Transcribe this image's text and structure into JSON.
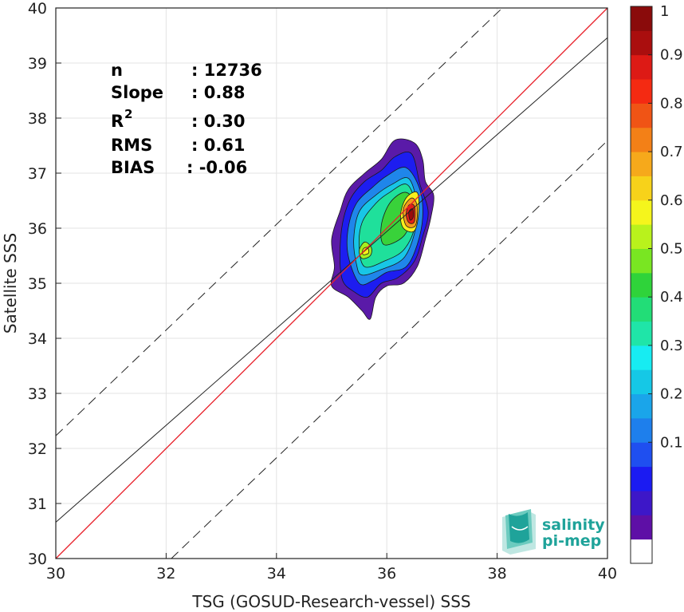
{
  "chart_data": {
    "type": "heatmap",
    "subtype": "density-contour-scatter",
    "xlabel": "TSG (GOSUD-Research-vessel) SSS",
    "ylabel": "Satellite SSS",
    "xlim": [
      30,
      40
    ],
    "ylim": [
      30,
      40
    ],
    "xticks": [
      "30",
      "32",
      "34",
      "36",
      "38",
      "40"
    ],
    "yticks": [
      "30",
      "31",
      "32",
      "33",
      "34",
      "35",
      "36",
      "37",
      "38",
      "39",
      "40"
    ],
    "grid": true,
    "stats": [
      {
        "label": "n",
        "value": ": 12736"
      },
      {
        "label": "Slope",
        "value": ": 0.88"
      },
      {
        "label": "R",
        "sup": "2",
        "value": ": 0.30"
      },
      {
        "label": "RMS",
        "value": ": 0.61"
      },
      {
        "label": "BIAS",
        "value": ": -0.06"
      }
    ],
    "lines": {
      "identity": {
        "slope": 1,
        "intercept": 0,
        "color": "#e8202a"
      },
      "regression": {
        "slope": 0.88,
        "intercept": 4.26,
        "color": "#222222"
      },
      "bounds": [
        {
          "slope": 0.96,
          "intercept": 3.43,
          "style": "dashed"
        },
        {
          "slope": 0.96,
          "intercept": -0.81,
          "style": "dashed"
        }
      ]
    },
    "density_contours": [
      {
        "level": 0.05,
        "color": "#5a1aa8",
        "points": [
          [
            35.3,
            34.75
          ],
          [
            35.55,
            34.5
          ],
          [
            35.7,
            34.35
          ],
          [
            35.8,
            34.75
          ],
          [
            36.0,
            34.95
          ],
          [
            36.3,
            35.0
          ],
          [
            36.55,
            35.3
          ],
          [
            36.7,
            35.8
          ],
          [
            36.8,
            36.2
          ],
          [
            36.85,
            36.6
          ],
          [
            36.7,
            36.85
          ],
          [
            36.65,
            37.25
          ],
          [
            36.5,
            37.55
          ],
          [
            36.15,
            37.6
          ],
          [
            35.9,
            37.25
          ],
          [
            35.6,
            37.0
          ],
          [
            35.3,
            36.7
          ],
          [
            35.15,
            36.3
          ],
          [
            35.0,
            35.8
          ],
          [
            35.05,
            35.3
          ],
          [
            35.0,
            34.95
          ]
        ]
      },
      {
        "level": 0.15,
        "color": "#1d1df0",
        "points": [
          [
            35.4,
            34.85
          ],
          [
            35.65,
            34.75
          ],
          [
            35.9,
            35.0
          ],
          [
            36.2,
            35.1
          ],
          [
            36.5,
            35.4
          ],
          [
            36.65,
            35.85
          ],
          [
            36.75,
            36.3
          ],
          [
            36.6,
            36.8
          ],
          [
            36.45,
            37.35
          ],
          [
            36.15,
            37.3
          ],
          [
            35.9,
            37.05
          ],
          [
            35.6,
            36.85
          ],
          [
            35.35,
            36.55
          ],
          [
            35.2,
            36.1
          ],
          [
            35.15,
            35.5
          ],
          [
            35.2,
            35.05
          ]
        ]
      },
      {
        "level": 0.25,
        "color": "#1f86ea",
        "points": [
          [
            35.5,
            35.0
          ],
          [
            35.75,
            35.05
          ],
          [
            36.0,
            35.2
          ],
          [
            36.35,
            35.3
          ],
          [
            36.55,
            35.7
          ],
          [
            36.65,
            36.2
          ],
          [
            36.6,
            36.7
          ],
          [
            36.35,
            37.1
          ],
          [
            36.0,
            36.95
          ],
          [
            35.75,
            36.75
          ],
          [
            35.45,
            36.45
          ],
          [
            35.3,
            36.0
          ],
          [
            35.3,
            35.5
          ]
        ]
      },
      {
        "level": 0.35,
        "color": "#18c6e6",
        "points": [
          [
            35.55,
            35.15
          ],
          [
            35.9,
            35.25
          ],
          [
            36.3,
            35.45
          ],
          [
            36.5,
            35.9
          ],
          [
            36.55,
            36.4
          ],
          [
            36.4,
            36.9
          ],
          [
            36.1,
            36.8
          ],
          [
            35.8,
            36.6
          ],
          [
            35.5,
            36.3
          ],
          [
            35.4,
            35.8
          ],
          [
            35.45,
            35.35
          ]
        ]
      },
      {
        "level": 0.45,
        "color": "#1fe09b",
        "points": [
          [
            35.6,
            35.3
          ],
          [
            35.95,
            35.4
          ],
          [
            36.3,
            35.6
          ],
          [
            36.5,
            36.0
          ],
          [
            36.5,
            36.5
          ],
          [
            36.35,
            36.8
          ],
          [
            36.05,
            36.65
          ],
          [
            35.8,
            36.45
          ],
          [
            35.55,
            36.1
          ],
          [
            35.5,
            35.65
          ]
        ]
      },
      {
        "level": 0.55,
        "color": "#39d23a",
        "points": [
          [
            35.95,
            35.7
          ],
          [
            36.3,
            35.85
          ],
          [
            36.45,
            36.2
          ],
          [
            36.45,
            36.55
          ],
          [
            36.3,
            36.65
          ],
          [
            36.05,
            36.45
          ],
          [
            35.9,
            36.05
          ]
        ]
      },
      {
        "level": 0.6,
        "color": "#a6ef1f",
        "points": [
          [
            35.55,
            35.45
          ],
          [
            35.7,
            35.5
          ],
          [
            35.72,
            35.65
          ],
          [
            35.6,
            35.75
          ],
          [
            35.5,
            35.6
          ]
        ]
      },
      {
        "level": 0.65,
        "color": "#f8f01c",
        "points": [
          [
            36.3,
            36.0
          ],
          [
            36.5,
            35.95
          ],
          [
            36.58,
            36.3
          ],
          [
            36.55,
            36.65
          ],
          [
            36.35,
            36.55
          ],
          [
            36.25,
            36.25
          ]
        ]
      },
      {
        "level": 0.75,
        "color": "#f49a1c",
        "points": [
          [
            36.35,
            36.05
          ],
          [
            36.52,
            36.05
          ],
          [
            36.55,
            36.4
          ],
          [
            36.45,
            36.55
          ],
          [
            36.3,
            36.35
          ]
        ]
      },
      {
        "level": 0.9,
        "color": "#e32019",
        "points": [
          [
            36.4,
            36.1
          ],
          [
            36.5,
            36.12
          ],
          [
            36.5,
            36.4
          ],
          [
            36.4,
            36.42
          ],
          [
            36.35,
            36.25
          ]
        ]
      },
      {
        "level": 1.0,
        "color": "#9a0b0b",
        "points": [
          [
            36.42,
            36.15
          ],
          [
            36.48,
            36.2
          ],
          [
            36.47,
            36.35
          ],
          [
            36.4,
            36.3
          ]
        ]
      },
      {
        "level": 0.62,
        "color": "#f8f01c",
        "points": [
          [
            35.57,
            35.52
          ],
          [
            35.67,
            35.55
          ],
          [
            35.65,
            35.65
          ],
          [
            35.57,
            35.62
          ]
        ]
      }
    ],
    "colorbar": {
      "ticks": [
        "0.1",
        "0.2",
        "0.3",
        "0.4",
        "0.5",
        "0.6",
        "0.7",
        "0.8",
        "0.9",
        "1"
      ],
      "tick_values": [
        0.1,
        0.2,
        0.3,
        0.4,
        0.5,
        0.6,
        0.7,
        0.8,
        0.9,
        1.0
      ],
      "colors": [
        "#ffffff",
        "#5e0fa6",
        "#3d17c8",
        "#1b1bf2",
        "#1f4ff0",
        "#1e7fec",
        "#1aa5ea",
        "#15c8e6",
        "#17ecf2",
        "#1fe5a8",
        "#22dd77",
        "#2fd33a",
        "#79e622",
        "#b9f21c",
        "#f5f51c",
        "#f7d21a",
        "#f6a91b",
        "#f38017",
        "#f05415",
        "#f42a12",
        "#dd1a15",
        "#aa0e0e",
        "#8a0b0b"
      ]
    },
    "logo": {
      "line1": "salinity",
      "line2": "pi-mep"
    }
  }
}
